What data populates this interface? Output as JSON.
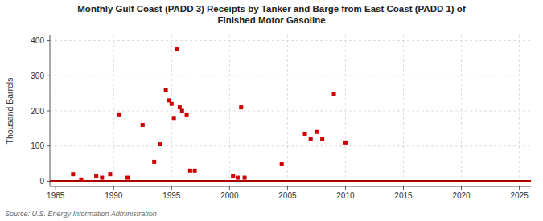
{
  "chart_data": {
    "type": "scatter",
    "title": "Monthly Gulf Coast (PADD 3) Receipts by Tanker and Barge from East Coast (PADD 1) of\nFinished Motor Gasoline",
    "ylabel": "Thousand Barrels",
    "source": "Source: U.S. Energy Information Administration",
    "xlim": [
      1984.5,
      2026
    ],
    "ylim": [
      -15,
      415
    ],
    "xticks": [
      1985,
      1990,
      1995,
      2000,
      2005,
      2010,
      2015,
      2020,
      2025
    ],
    "yticks": [
      0,
      100,
      200,
      300,
      400
    ],
    "grid": true,
    "series": [
      {
        "type": "scatter",
        "color": "#cc0000",
        "marker": "square",
        "x": [
          1986.5,
          1987.2,
          1988.5,
          1989.0,
          1989.7,
          1990.5,
          1991.2,
          1992.5,
          1993.5,
          1994.0,
          1994.5,
          1994.8,
          1995.0,
          1995.2,
          1995.5,
          1995.7,
          1995.9,
          1996.3,
          1996.6,
          1997.0,
          2000.3,
          2000.7,
          2001.0,
          2001.3,
          2004.5,
          2006.5,
          2007.0,
          2007.5,
          2008.0,
          2009.0,
          2010.0
        ],
        "values": [
          20,
          5,
          15,
          10,
          20,
          190,
          10,
          160,
          55,
          105,
          260,
          230,
          220,
          180,
          375,
          210,
          200,
          190,
          30,
          30,
          15,
          10,
          210,
          10,
          48,
          135,
          120,
          140,
          120,
          248,
          110
        ]
      },
      {
        "type": "line",
        "color": "#aa0000",
        "x": [
          1984.5,
          2003.5,
          2026
        ],
        "values": [
          0,
          0,
          0
        ]
      }
    ]
  }
}
